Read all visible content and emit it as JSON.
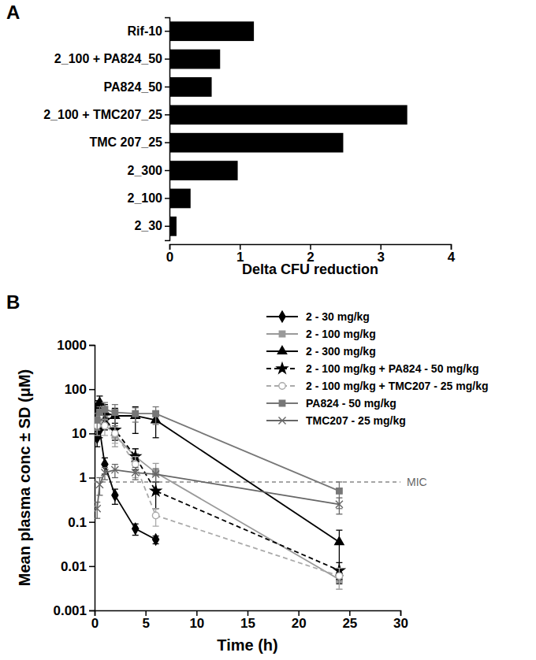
{
  "chart_data": [
    {
      "type": "bar",
      "title": "A",
      "orientation": "horizontal",
      "color": "#000000",
      "grid": false,
      "categories": [
        "Rif-10",
        "2_100 + PA824_50",
        "PA824_50",
        "2_100 + TMC207_25",
        "TMC 207_25",
        "2_300",
        "2_100",
        "2_30"
      ],
      "values": [
        1.2,
        0.72,
        0.6,
        3.38,
        2.47,
        0.97,
        0.3,
        0.1
      ],
      "x_label": "Delta CFU reduction",
      "xlim": [
        0,
        4
      ],
      "xticks": [
        0,
        1,
        2,
        3,
        4
      ]
    },
    {
      "type": "line",
      "title": "B",
      "log": "y",
      "grid": false,
      "legend": "top-right",
      "x_label": "Time (h)",
      "y_label": "Mean plasma conc ± SD (μM)",
      "x": [
        0.25,
        0.5,
        1,
        2,
        4,
        6,
        24
      ],
      "xlim": [
        0,
        30
      ],
      "xticks": [
        0,
        5,
        10,
        15,
        20,
        25,
        30
      ],
      "ylim": [
        0.001,
        1000
      ],
      "yticks": [
        0.001,
        0.01,
        0.1,
        1,
        10,
        100,
        1000
      ],
      "series": [
        {
          "name": "2 - 30 mg/kg",
          "color": "#000000",
          "marker": "diamond",
          "line_style": "solid",
          "values": [
            8,
            12,
            2,
            0.4,
            0.07,
            0.04,
            null
          ],
          "errors": [
            3,
            4,
            0.8,
            0.15,
            0.02,
            0.008,
            null
          ]
        },
        {
          "name": "2 - 100 mg/kg",
          "color": "#9a9a9a",
          "marker": "square",
          "line_style": "solid",
          "values": [
            20,
            30,
            25,
            9,
            3,
            1.3,
            0.005
          ],
          "errors": [
            8,
            10,
            10,
            4,
            1.5,
            0.8,
            0.002
          ]
        },
        {
          "name": "2 - 300 mg/kg",
          "color": "#000000",
          "marker": "triangle",
          "line_style": "solid",
          "values": [
            40,
            50,
            30,
            25,
            25,
            20,
            0.035
          ],
          "errors": [
            15,
            20,
            15,
            12,
            15,
            12,
            0.03
          ]
        },
        {
          "name": "2 - 100 mg/kg + PA824 - 50 mg/kg",
          "color": "#000000",
          "marker": "star",
          "line_style": "dashed",
          "values": [
            25,
            30,
            20,
            12,
            3,
            0.5,
            0.008
          ],
          "errors": [
            8,
            10,
            8,
            5,
            1.5,
            0.3,
            0.004
          ]
        },
        {
          "name": "2 - 100 mg/kg + TMC207 - 25 mg/kg",
          "color": "#aaaaaa",
          "marker": "circle",
          "line_style": "dashed",
          "values": [
            15,
            25,
            15,
            10,
            2,
            0.14,
            0.006
          ],
          "errors": [
            6,
            10,
            6,
            4,
            1,
            0.06,
            0.003
          ]
        },
        {
          "name": "PA824 - 50 mg/kg",
          "color": "#777777",
          "marker": "square",
          "line_style": "solid",
          "values": [
            20,
            30,
            35,
            30,
            28,
            28,
            0.5
          ],
          "errors": [
            8,
            10,
            15,
            15,
            10,
            12,
            0.3
          ]
        },
        {
          "name": "TMC207 - 25 mg/kg",
          "color": "#666666",
          "marker": "x",
          "line_style": "solid",
          "values": [
            0.2,
            0.7,
            1.3,
            1.5,
            1.3,
            1.2,
            0.25
          ],
          "errors": [
            0.08,
            0.3,
            0.4,
            0.5,
            0.4,
            0.4,
            0.1
          ]
        }
      ],
      "annotations": [
        {
          "y": 0.8,
          "text": "MIC"
        }
      ]
    }
  ]
}
